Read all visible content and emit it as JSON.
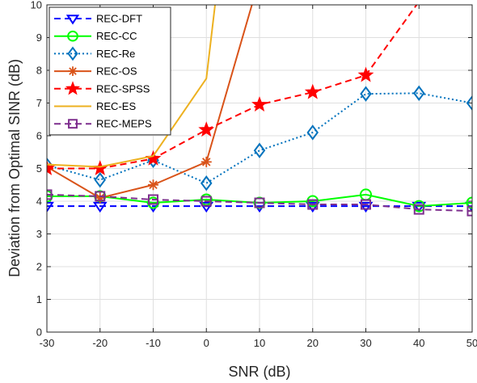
{
  "chart_data": {
    "type": "line",
    "xlabel": "SNR (dB)",
    "ylabel": "Deviation from Optimal SINR (dB)",
    "xlim": [
      -30,
      50
    ],
    "ylim": [
      0,
      10
    ],
    "xticks": [
      -30,
      -20,
      -10,
      0,
      10,
      20,
      30,
      40,
      50
    ],
    "yticks": [
      0,
      1,
      2,
      3,
      4,
      5,
      6,
      7,
      8,
      9,
      10
    ],
    "grid": true,
    "legend_position": "top-left",
    "series": [
      {
        "name": "REC-DFT",
        "color": "#0000ff",
        "dash": "dashed",
        "marker": "triangle-down",
        "x": [
          -30,
          -20,
          -10,
          0,
          10,
          20,
          30,
          40,
          50
        ],
        "y": [
          3.85,
          3.85,
          3.85,
          3.85,
          3.85,
          3.85,
          3.85,
          3.85,
          3.85
        ]
      },
      {
        "name": "REC-CC",
        "color": "#00ff00",
        "dash": "solid",
        "marker": "circle",
        "x": [
          -30,
          -20,
          -10,
          0,
          10,
          20,
          30,
          40,
          50
        ],
        "y": [
          4.15,
          4.15,
          3.95,
          4.05,
          3.95,
          4.0,
          4.2,
          3.85,
          3.95
        ]
      },
      {
        "name": "REC-Re",
        "color": "#0072bd",
        "dash": "dotted",
        "marker": "diamond",
        "x": [
          -30,
          -20,
          -10,
          0,
          10,
          20,
          30,
          40,
          50
        ],
        "y": [
          5.1,
          4.65,
          5.25,
          4.55,
          5.55,
          6.1,
          7.28,
          7.3,
          7.0
        ]
      },
      {
        "name": "REC-OS",
        "color": "#d95319",
        "dash": "solid",
        "marker": "asterisk",
        "x": [
          -30,
          -20,
          -10,
          0,
          10
        ],
        "y": [
          5.05,
          4.1,
          4.5,
          5.2,
          10.8
        ]
      },
      {
        "name": "REC-SPSS",
        "color": "#ff0000",
        "dash": "dashed",
        "marker": "pentagram",
        "x": [
          -30,
          -20,
          -10,
          0,
          10,
          20,
          30,
          40
        ],
        "y": [
          5.0,
          5.0,
          5.3,
          6.18,
          6.95,
          7.33,
          7.85,
          10.1
        ]
      },
      {
        "name": "REC-ES",
        "color": "#edb120",
        "dash": "solid",
        "marker": "none",
        "x": [
          -30,
          -20,
          -10,
          0,
          2
        ],
        "y": [
          5.12,
          5.05,
          5.38,
          7.75,
          10.5
        ]
      },
      {
        "name": "REC-MEPS",
        "color": "#7e2f8e",
        "dash": "dashed",
        "marker": "square",
        "x": [
          -30,
          -20,
          -10,
          0,
          10,
          20,
          30,
          40,
          50
        ],
        "y": [
          4.2,
          4.15,
          4.05,
          4.0,
          3.95,
          3.9,
          3.9,
          3.75,
          3.7
        ]
      }
    ]
  }
}
